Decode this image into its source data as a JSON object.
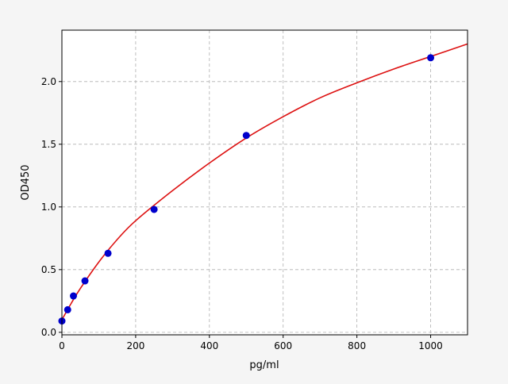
{
  "chart_data": {
    "type": "scatter",
    "title": "",
    "xlabel": "pg/ml",
    "ylabel": "OD450",
    "xlim": [
      0,
      1100
    ],
    "ylim": [
      -0.02,
      2.41
    ],
    "xticks": [
      0,
      200,
      400,
      600,
      800,
      1000
    ],
    "yticks": [
      0.0,
      0.5,
      1.0,
      1.5,
      2.0
    ],
    "xtick_labels": [
      "0",
      "200",
      "400",
      "600",
      "800",
      "1000"
    ],
    "ytick_labels": [
      "0.0",
      "0.5",
      "1.0",
      "1.5",
      "2.0"
    ],
    "grid": true,
    "points": {
      "color": "#0000cc",
      "x": [
        0,
        15.6,
        31.25,
        62.5,
        125,
        250,
        500,
        1000
      ],
      "y": [
        0.09,
        0.18,
        0.29,
        0.41,
        0.63,
        0.98,
        1.57,
        2.19
      ]
    },
    "fit_curve": {
      "color": "#dd1111",
      "x": [
        0,
        25,
        50,
        100,
        150,
        200,
        300,
        400,
        500,
        600,
        700,
        800,
        900,
        1000,
        1100
      ],
      "y": [
        0.1,
        0.23,
        0.35,
        0.56,
        0.74,
        0.89,
        1.13,
        1.35,
        1.55,
        1.72,
        1.87,
        1.99,
        2.1,
        2.2,
        2.3
      ]
    }
  }
}
